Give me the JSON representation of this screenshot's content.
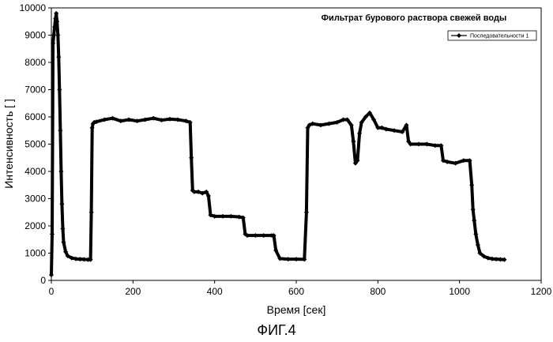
{
  "chart_data": {
    "type": "line",
    "title": "Фильтрат бурового раствора свежей воды",
    "xlabel": "Время [сек]",
    "ylabel": "Интенсивность [ ]",
    "xlim": [
      0,
      1200
    ],
    "ylim": [
      0,
      10000
    ],
    "xticks": [
      "0",
      "200",
      "400",
      "600",
      "800",
      "1000",
      "1200"
    ],
    "yticks": [
      "0",
      "1000",
      "2000",
      "3000",
      "4000",
      "5000",
      "6000",
      "7000",
      "8000",
      "9000",
      "10000"
    ],
    "legend": "top-right",
    "grid": false,
    "series": [
      {
        "name": "Последовательности 1",
        "color": "#000000",
        "marker": "diamond",
        "x": [
          0,
          2,
          4,
          6,
          8,
          10,
          12,
          14,
          16,
          18,
          20,
          22,
          24,
          26,
          28,
          30,
          35,
          40,
          50,
          60,
          70,
          80,
          90,
          96,
          98,
          100,
          102,
          105,
          110,
          130,
          150,
          170,
          190,
          210,
          230,
          250,
          270,
          290,
          310,
          330,
          340,
          343,
          346,
          350,
          360,
          370,
          380,
          385,
          390,
          400,
          420,
          440,
          460,
          470,
          475,
          480,
          500,
          520,
          540,
          545,
          550,
          560,
          580,
          600,
          620,
          625,
          628,
          632,
          640,
          660,
          680,
          700,
          715,
          725,
          735,
          740,
          745,
          750,
          755,
          760,
          770,
          780,
          790,
          800,
          810,
          820,
          840,
          860,
          870,
          875,
          880,
          900,
          920,
          940,
          955,
          960,
          970,
          990,
          1010,
          1025,
          1030,
          1033,
          1036,
          1040,
          1045,
          1050,
          1060,
          1070,
          1080,
          1090,
          1100,
          1110
        ],
        "y": [
          200,
          1700,
          8700,
          9000,
          9300,
          9600,
          9800,
          9500,
          9000,
          8200,
          7000,
          5500,
          4000,
          2800,
          1900,
          1400,
          1050,
          900,
          820,
          790,
          780,
          770,
          760,
          760,
          2500,
          5600,
          5750,
          5800,
          5820,
          5900,
          5950,
          5850,
          5900,
          5850,
          5900,
          5950,
          5880,
          5920,
          5900,
          5850,
          5800,
          4500,
          3300,
          3250,
          3250,
          3200,
          3250,
          3100,
          2400,
          2350,
          2350,
          2350,
          2330,
          2300,
          1700,
          1650,
          1650,
          1650,
          1650,
          1650,
          1100,
          800,
          780,
          780,
          770,
          2500,
          5600,
          5700,
          5750,
          5700,
          5750,
          5800,
          5900,
          5900,
          5700,
          5100,
          4300,
          4400,
          5400,
          5800,
          6000,
          6150,
          5900,
          5600,
          5600,
          5550,
          5500,
          5450,
          5700,
          5100,
          5000,
          5000,
          5000,
          4950,
          4950,
          4400,
          4350,
          4300,
          4400,
          4400,
          3500,
          2600,
          2200,
          1700,
          1300,
          1000,
          880,
          820,
          790,
          780,
          770,
          760
        ]
      }
    ]
  },
  "caption": "ФИГ.4"
}
